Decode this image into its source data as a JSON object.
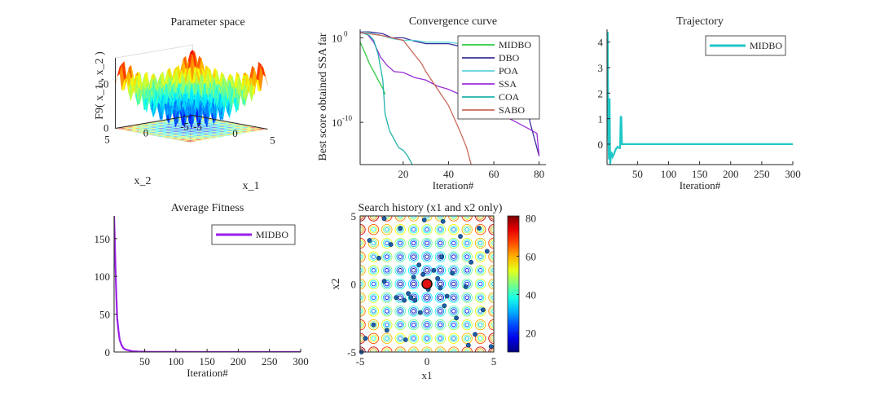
{
  "chart_data": [
    {
      "id": "param",
      "type": "surface3d",
      "title": "Parameter space",
      "xlabel": "x_1",
      "ylabel": "x_2",
      "zlabel": "F9( x_1 , x_2 )",
      "xlim": [
        -5,
        5
      ],
      "ylim": [
        -5,
        5
      ],
      "zlim": [
        0,
        80
      ],
      "xticks": [
        "-5",
        "0",
        "5"
      ],
      "yticks": [
        "-5",
        "0",
        "5"
      ],
      "zticks": [
        "0",
        "50"
      ],
      "function": "rastrigin"
    },
    {
      "id": "conv",
      "type": "line",
      "title": "Convergence curve",
      "xlabel": "Iteration#",
      "ylabel": "Best score obtained SSA far",
      "yscale": "log",
      "xlim": [
        1,
        83
      ],
      "ylim": [
        1e-15,
        10
      ],
      "xticks": [
        "20",
        "40",
        "60",
        "80"
      ],
      "yticks": [
        "10",
        "10"
      ],
      "ytick_exponents": [
        "0",
        "-10"
      ],
      "legend_position": "top-right",
      "series": [
        {
          "name": "MIDBO",
          "color": "#2ecc40",
          "x": [
            1,
            3,
            5,
            7,
            9,
            11,
            12
          ],
          "y": [
            0.3,
            0.02,
            0.001,
            0.0001,
            1e-05,
            1e-06,
            2e-07
          ]
        },
        {
          "name": "DBO",
          "color": "#3a2f9e",
          "x": [
            1,
            5,
            8,
            11,
            15,
            20,
            25,
            30,
            35,
            40,
            45,
            50,
            55,
            60,
            65,
            68,
            72,
            74,
            76,
            78,
            80
          ],
          "y": [
            5,
            5,
            4,
            3,
            1,
            1,
            0.4,
            0.2,
            0.2,
            0.2,
            0.1,
            0.1,
            0.1,
            0.1,
            0.1,
            0.1,
            1e-05,
            1e-07,
            1e-10,
            1e-12,
            1e-14
          ]
        },
        {
          "name": "POA",
          "color": "#5fd3d8",
          "x": [
            1,
            5,
            10,
            15,
            20,
            25,
            30,
            35,
            40,
            45,
            50,
            55,
            58,
            60,
            62,
            64,
            66
          ],
          "y": [
            5,
            4,
            2,
            0.8,
            0.5,
            0.5,
            0.3,
            0.3,
            0.3,
            0.2,
            0.2,
            0.2,
            0.05,
            0.002,
            1e-05,
            1e-07,
            1e-09
          ]
        },
        {
          "name": "SSA",
          "color": "#9b30d9",
          "x": [
            1,
            4,
            7,
            10,
            13,
            16,
            20,
            25,
            30,
            35,
            40,
            45,
            50,
            55,
            60,
            65,
            70,
            75,
            79,
            80
          ],
          "y": [
            5,
            3,
            0.3,
            0.005,
            0.0005,
            0.0001,
            8e-05,
            2e-05,
            1e-05,
            2e-06,
            8e-07,
            2e-07,
            5e-08,
            1e-08,
            2e-09,
            5e-10,
            1e-10,
            2e-11,
            5e-12,
            1e-14
          ]
        },
        {
          "name": "COA",
          "color": "#20b2aa",
          "x": [
            1,
            3,
            5,
            7,
            9,
            11,
            12,
            14,
            16,
            18,
            20,
            22,
            24
          ],
          "y": [
            4,
            3,
            2,
            0.5,
            0.01,
            1e-05,
            1e-09,
            1e-11,
            1e-12,
            1e-13,
            5e-14,
            1e-14,
            1e-15
          ]
        },
        {
          "name": "SABO",
          "color": "#c86a5a",
          "x": [
            1,
            5,
            10,
            15,
            20,
            25,
            28,
            30,
            35,
            40,
            45,
            48,
            50
          ],
          "y": [
            4,
            3,
            2,
            1,
            0.5,
            0.01,
            0.001,
            0.0001,
            1e-06,
            1e-08,
            1e-11,
            1e-13,
            1e-15
          ]
        }
      ]
    },
    {
      "id": "traj",
      "type": "line",
      "title": "Trajectory",
      "xlabel": "Iteration#",
      "xlim": [
        1,
        300
      ],
      "ylim": [
        -0.8,
        4.5
      ],
      "xticks": [
        "50",
        "100",
        "150",
        "200",
        "250",
        "300"
      ],
      "yticks": [
        "0",
        "1",
        "2",
        "3",
        "4"
      ],
      "legend_position": "top-right",
      "series": [
        {
          "name": "MIDBO",
          "color": "#1fc7c7",
          "x": [
            1,
            2,
            3,
            4,
            5,
            6,
            8,
            10,
            12,
            15,
            18,
            20,
            22,
            23,
            24,
            25,
            26,
            30,
            300
          ],
          "y": [
            3.2,
            4.4,
            0.5,
            -0.6,
            1.8,
            -0.8,
            -0.3,
            -0.5,
            -0.4,
            -0.2,
            -0.1,
            -0.15,
            -0.15,
            1.1,
            1.05,
            0.0,
            0.0,
            0.0,
            0.0
          ]
        }
      ]
    },
    {
      "id": "avg",
      "type": "line",
      "title": "Average Fitness",
      "xlabel": "Iteration#",
      "xlim": [
        1,
        300
      ],
      "ylim": [
        0,
        180
      ],
      "xticks": [
        "50",
        "100",
        "150",
        "200",
        "250",
        "300"
      ],
      "yticks": [
        "0",
        "50",
        "100",
        "150"
      ],
      "legend_position": "top-right",
      "series": [
        {
          "name": "MIDBO",
          "color": "#9a1ee8",
          "x": [
            1,
            2,
            3,
            4,
            5,
            6,
            8,
            10,
            13,
            16,
            20,
            25,
            30,
            40,
            60,
            100,
            200,
            300
          ],
          "y": [
            180,
            150,
            120,
            90,
            65,
            45,
            28,
            16,
            9,
            5,
            3,
            2,
            1,
            0.5,
            0.2,
            0.1,
            0.05,
            0.02
          ]
        }
      ]
    },
    {
      "id": "hist",
      "type": "contour",
      "title": "Search history (x1 and x2 only)",
      "xlabel": "x1",
      "ylabel": "x2",
      "xlim": [
        -5,
        5
      ],
      "ylim": [
        -5,
        5
      ],
      "xticks": [
        "-5",
        "0",
        "5"
      ],
      "yticks": [
        "-5",
        "0",
        "5"
      ],
      "colorbar_ticks": [
        "20",
        "40",
        "60",
        "80"
      ],
      "colorbar_range": [
        10,
        81
      ],
      "best": [
        0,
        0
      ],
      "points": [
        [
          -4.9,
          -5.0
        ],
        [
          -4.6,
          -4.0
        ],
        [
          -4.3,
          3.2
        ],
        [
          -4.0,
          -3.0
        ],
        [
          -3.6,
          1.9
        ],
        [
          -3.2,
          0.2
        ],
        [
          -3.0,
          -3.4
        ],
        [
          -2.7,
          2.9
        ],
        [
          -2.3,
          -1.0
        ],
        [
          -2.0,
          4.1
        ],
        [
          -1.7,
          -1.2
        ],
        [
          -1.4,
          -0.7
        ],
        [
          -1.2,
          -1.0
        ],
        [
          -1.0,
          0.5
        ],
        [
          -0.9,
          -1.2
        ],
        [
          -0.6,
          1.4
        ],
        [
          -0.5,
          -2.1
        ],
        [
          -0.3,
          0.7
        ],
        [
          0.1,
          -0.4
        ],
        [
          0.5,
          1.0
        ],
        [
          0.8,
          0.4
        ],
        [
          1.0,
          -0.3
        ],
        [
          1.1,
          2.0
        ],
        [
          1.3,
          -1.6
        ],
        [
          1.5,
          -0.9
        ],
        [
          1.9,
          0.8
        ],
        [
          2.2,
          -2.5
        ],
        [
          2.5,
          3.5
        ],
        [
          2.9,
          -0.2
        ],
        [
          3.3,
          1.6
        ],
        [
          3.6,
          -3.7
        ],
        [
          3.9,
          4.1
        ],
        [
          4.2,
          -1.9
        ],
        [
          4.5,
          2.4
        ],
        [
          4.8,
          -4.6
        ],
        [
          -0.2,
          4.7
        ],
        [
          1.2,
          4.6
        ],
        [
          -3.2,
          4.8
        ],
        [
          3.1,
          -4.5
        ],
        [
          -1.6,
          -4.1
        ]
      ]
    }
  ]
}
